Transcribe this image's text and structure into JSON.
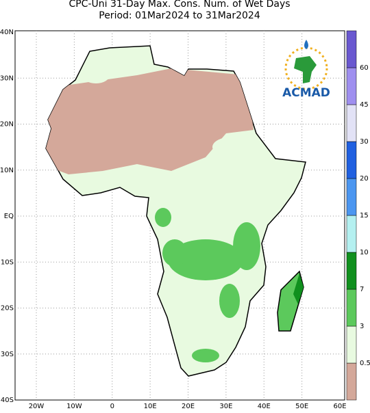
{
  "title": {
    "line1": "CPC-Uni 31-Day Max. Cons. Num. of Wet Days",
    "line2": "Period: 01Mar2024 to 31Mar2024"
  },
  "map": {
    "lat_labels": [
      "40N",
      "30N",
      "20N",
      "10N",
      "EQ",
      "10S",
      "20S",
      "30S",
      "40S"
    ],
    "lon_labels": [
      "20W",
      "10W",
      "0",
      "10E",
      "20E",
      "30E",
      "40E",
      "50E",
      "60E"
    ]
  },
  "logo": {
    "text": "ACMAD"
  },
  "legend": {
    "labels": [
      "0.5",
      "3",
      "7",
      "10",
      "15",
      "20",
      "30",
      "45",
      "60"
    ],
    "colors": [
      "#d4a89a",
      "#e8fae0",
      "#5cc95c",
      "#10901e",
      "#b4f0f0",
      "#4b96f0",
      "#2060e0",
      "#e2e2f6",
      "#9f8fef",
      "#6a58d0"
    ]
  }
}
